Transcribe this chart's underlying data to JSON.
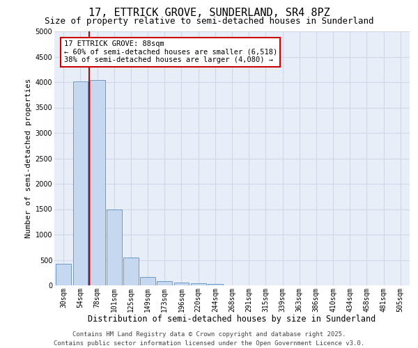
{
  "title_line1": "17, ETTRICK GROVE, SUNDERLAND, SR4 8PZ",
  "title_line2": "Size of property relative to semi-detached houses in Sunderland",
  "xlabel": "Distribution of semi-detached houses by size in Sunderland",
  "ylabel": "Number of semi-detached properties",
  "categories": [
    "30sqm",
    "54sqm",
    "78sqm",
    "101sqm",
    "125sqm",
    "149sqm",
    "173sqm",
    "196sqm",
    "220sqm",
    "244sqm",
    "268sqm",
    "291sqm",
    "315sqm",
    "339sqm",
    "363sqm",
    "386sqm",
    "410sqm",
    "434sqm",
    "458sqm",
    "481sqm",
    "505sqm"
  ],
  "values": [
    430,
    4020,
    4040,
    1490,
    545,
    160,
    85,
    55,
    45,
    30,
    0,
    0,
    0,
    0,
    0,
    0,
    0,
    0,
    0,
    0,
    0
  ],
  "bar_color": "#c5d8f0",
  "bar_edgecolor": "#5a8fc2",
  "red_line_x": 1.5,
  "highlight_color": "#cc0000",
  "annotation_box_text": "17 ETTRICK GROVE: 88sqm\n← 60% of semi-detached houses are smaller (6,518)\n38% of semi-detached houses are larger (4,080) →",
  "annotation_box_color": "#cc0000",
  "ylim": [
    0,
    5000
  ],
  "yticks": [
    0,
    500,
    1000,
    1500,
    2000,
    2500,
    3000,
    3500,
    4000,
    4500,
    5000
  ],
  "grid_color": "#d0d8e8",
  "background_color": "#e8eef8",
  "footer_line1": "Contains HM Land Registry data © Crown copyright and database right 2025.",
  "footer_line2": "Contains public sector information licensed under the Open Government Licence v3.0.",
  "title_fontsize": 11,
  "subtitle_fontsize": 9,
  "axis_label_fontsize": 8.5,
  "tick_fontsize": 7,
  "annotation_fontsize": 7.5,
  "footer_fontsize": 6.5,
  "ylabel_fontsize": 8
}
